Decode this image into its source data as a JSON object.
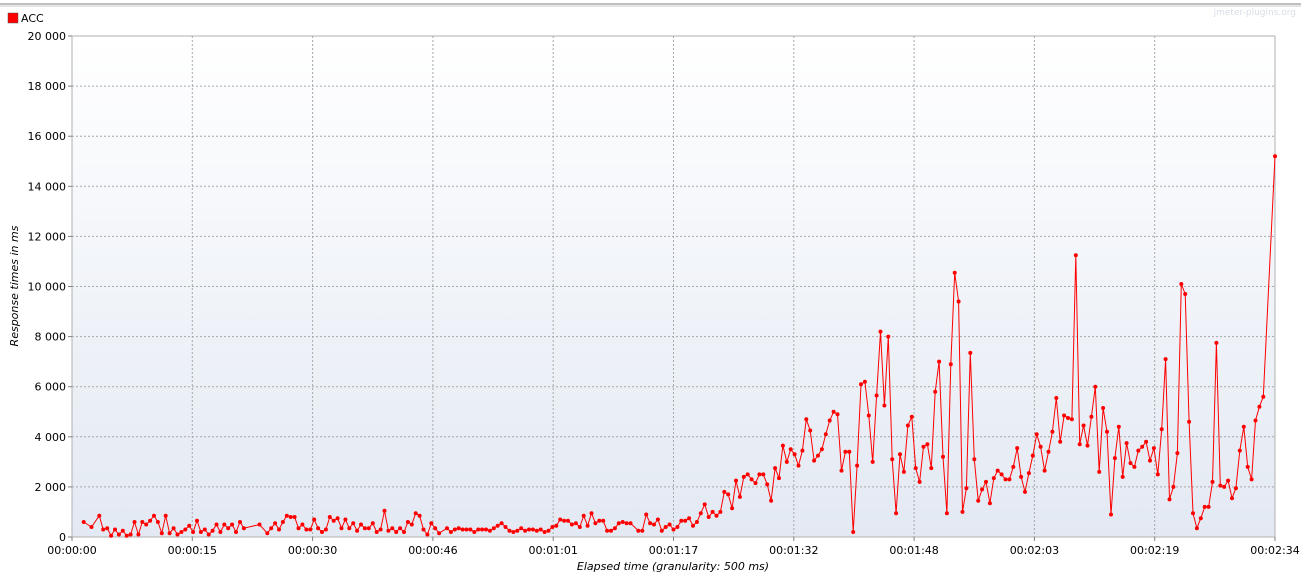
{
  "watermark": "jmeter-plugins.org",
  "legend": {
    "label": "ACC",
    "color": "#ff0000"
  },
  "chart_data": {
    "type": "line",
    "title": "",
    "xlabel": "Elapsed time (granularity: 500 ms)",
    "ylabel": "Response times in ms",
    "x_unit": "seconds",
    "xlim": [
      0,
      154
    ],
    "ylim": [
      0,
      20000
    ],
    "x_ticks": [
      "00:00:00",
      "00:00:15",
      "00:00:30",
      "00:00:46",
      "00:01:01",
      "00:01:17",
      "00:01:32",
      "00:01:48",
      "00:02:03",
      "00:02:19",
      "00:02:34"
    ],
    "y_ticks": [
      "0",
      "2 000",
      "4 000",
      "6 000",
      "8 000",
      "10 000",
      "12 000",
      "14 000",
      "16 000",
      "18 000",
      "20 000"
    ],
    "grid": true,
    "legend_position": "top-left",
    "series": [
      {
        "name": "ACC",
        "color": "#ff0000",
        "points": [
          [
            1.5,
            600
          ],
          [
            2.5,
            400
          ],
          [
            3.5,
            850
          ],
          [
            4.0,
            300
          ],
          [
            4.5,
            350
          ],
          [
            5.0,
            50
          ],
          [
            5.5,
            300
          ],
          [
            6.0,
            100
          ],
          [
            6.5,
            250
          ],
          [
            7.0,
            50
          ],
          [
            7.5,
            100
          ],
          [
            8.0,
            600
          ],
          [
            8.5,
            100
          ],
          [
            9.0,
            600
          ],
          [
            9.5,
            500
          ],
          [
            10.0,
            650
          ],
          [
            10.5,
            850
          ],
          [
            11.0,
            600
          ],
          [
            11.5,
            150
          ],
          [
            12.0,
            850
          ],
          [
            12.5,
            150
          ],
          [
            13.0,
            350
          ],
          [
            13.5,
            100
          ],
          [
            14.0,
            200
          ],
          [
            14.5,
            300
          ],
          [
            15.0,
            450
          ],
          [
            15.5,
            200
          ],
          [
            16.0,
            650
          ],
          [
            16.5,
            200
          ],
          [
            17.0,
            300
          ],
          [
            17.5,
            100
          ],
          [
            18.0,
            250
          ],
          [
            18.5,
            500
          ],
          [
            19.0,
            200
          ],
          [
            19.5,
            500
          ],
          [
            20.0,
            350
          ],
          [
            20.5,
            500
          ],
          [
            21.0,
            200
          ],
          [
            21.5,
            600
          ],
          [
            22.0,
            350
          ],
          [
            24.0,
            500
          ],
          [
            25.0,
            150
          ],
          [
            25.5,
            350
          ],
          [
            26.0,
            550
          ],
          [
            26.5,
            300
          ],
          [
            27.0,
            600
          ],
          [
            27.5,
            850
          ],
          [
            28.0,
            800
          ],
          [
            28.5,
            800
          ],
          [
            29.0,
            350
          ],
          [
            29.5,
            500
          ],
          [
            30.0,
            300
          ],
          [
            30.5,
            300
          ],
          [
            31.0,
            700
          ],
          [
            31.5,
            350
          ],
          [
            32.0,
            200
          ],
          [
            32.5,
            300
          ],
          [
            33.0,
            800
          ],
          [
            33.5,
            650
          ],
          [
            34.0,
            750
          ],
          [
            34.5,
            350
          ],
          [
            35.0,
            700
          ],
          [
            35.5,
            350
          ],
          [
            36.0,
            550
          ],
          [
            36.5,
            250
          ],
          [
            37.0,
            500
          ],
          [
            37.5,
            350
          ],
          [
            38.0,
            350
          ],
          [
            38.5,
            550
          ],
          [
            39.0,
            200
          ],
          [
            39.5,
            300
          ],
          [
            40.0,
            1050
          ],
          [
            40.5,
            250
          ],
          [
            41.0,
            350
          ],
          [
            41.5,
            200
          ],
          [
            42.0,
            350
          ],
          [
            42.5,
            200
          ],
          [
            43.0,
            600
          ],
          [
            43.5,
            500
          ],
          [
            44.0,
            950
          ],
          [
            44.5,
            850
          ],
          [
            45.0,
            300
          ],
          [
            45.5,
            100
          ],
          [
            46.0,
            550
          ],
          [
            46.5,
            350
          ],
          [
            47.0,
            150
          ],
          [
            48.0,
            350
          ],
          [
            48.5,
            200
          ],
          [
            49.0,
            300
          ],
          [
            49.5,
            350
          ],
          [
            50.0,
            300
          ],
          [
            50.5,
            300
          ],
          [
            51.0,
            300
          ],
          [
            51.5,
            200
          ],
          [
            52.0,
            300
          ],
          [
            52.5,
            300
          ],
          [
            53.0,
            300
          ],
          [
            53.5,
            250
          ],
          [
            54.0,
            350
          ],
          [
            54.5,
            450
          ],
          [
            55.0,
            550
          ],
          [
            55.5,
            400
          ],
          [
            56.0,
            250
          ],
          [
            56.5,
            200
          ],
          [
            57.0,
            250
          ],
          [
            57.5,
            350
          ],
          [
            58.0,
            250
          ],
          [
            58.5,
            300
          ],
          [
            59.0,
            300
          ],
          [
            59.5,
            250
          ],
          [
            60.0,
            300
          ],
          [
            60.5,
            200
          ],
          [
            61.0,
            250
          ],
          [
            61.5,
            400
          ],
          [
            62.0,
            450
          ],
          [
            62.5,
            700
          ],
          [
            63.0,
            650
          ],
          [
            63.5,
            650
          ],
          [
            64.0,
            500
          ],
          [
            64.5,
            550
          ],
          [
            65.0,
            400
          ],
          [
            65.5,
            850
          ],
          [
            66.0,
            450
          ],
          [
            66.5,
            950
          ],
          [
            67.0,
            550
          ],
          [
            67.5,
            650
          ],
          [
            68.0,
            650
          ],
          [
            68.5,
            250
          ],
          [
            69.0,
            250
          ],
          [
            69.5,
            350
          ],
          [
            70.0,
            550
          ],
          [
            70.5,
            600
          ],
          [
            71.0,
            550
          ],
          [
            71.5,
            550
          ],
          [
            72.5,
            250
          ],
          [
            73.0,
            250
          ],
          [
            73.5,
            900
          ],
          [
            74.0,
            550
          ],
          [
            74.5,
            500
          ],
          [
            75.0,
            700
          ],
          [
            75.5,
            250
          ],
          [
            76.0,
            400
          ],
          [
            76.5,
            500
          ],
          [
            77.0,
            300
          ],
          [
            77.5,
            400
          ],
          [
            78.0,
            650
          ],
          [
            78.5,
            650
          ],
          [
            79.0,
            750
          ],
          [
            79.5,
            450
          ],
          [
            80.0,
            600
          ],
          [
            80.5,
            950
          ],
          [
            81.0,
            1300
          ],
          [
            81.5,
            800
          ],
          [
            82.0,
            1000
          ],
          [
            82.5,
            850
          ],
          [
            83.0,
            1000
          ],
          [
            83.5,
            1800
          ],
          [
            84.0,
            1700
          ],
          [
            84.5,
            1150
          ],
          [
            85.0,
            2250
          ],
          [
            85.5,
            1600
          ],
          [
            86.0,
            2400
          ],
          [
            86.5,
            2500
          ],
          [
            87.0,
            2300
          ],
          [
            87.5,
            2150
          ],
          [
            88.0,
            2500
          ],
          [
            88.5,
            2500
          ],
          [
            89.0,
            2100
          ],
          [
            89.5,
            1450
          ],
          [
            90.0,
            2750
          ],
          [
            90.5,
            2350
          ],
          [
            91.0,
            3650
          ],
          [
            91.5,
            3000
          ],
          [
            92.0,
            3500
          ],
          [
            92.5,
            3300
          ],
          [
            93.0,
            2850
          ],
          [
            93.5,
            3450
          ],
          [
            94.0,
            4700
          ],
          [
            94.5,
            4250
          ],
          [
            95.0,
            3050
          ],
          [
            95.5,
            3250
          ],
          [
            96.0,
            3500
          ],
          [
            96.5,
            4100
          ],
          [
            97.0,
            4650
          ],
          [
            97.5,
            5000
          ],
          [
            98.0,
            4900
          ],
          [
            98.5,
            2650
          ],
          [
            99.0,
            3400
          ],
          [
            99.5,
            3400
          ],
          [
            100.0,
            200
          ],
          [
            100.5,
            2850
          ],
          [
            101.0,
            6100
          ],
          [
            101.5,
            6200
          ],
          [
            102.0,
            4850
          ],
          [
            102.5,
            3000
          ],
          [
            103.0,
            5650
          ],
          [
            103.5,
            8200
          ],
          [
            104.0,
            5250
          ],
          [
            104.5,
            8000
          ],
          [
            105.0,
            3100
          ],
          [
            105.5,
            950
          ],
          [
            106.0,
            3300
          ],
          [
            106.5,
            2600
          ],
          [
            107.0,
            4450
          ],
          [
            107.5,
            4800
          ],
          [
            108.0,
            2750
          ],
          [
            108.5,
            2200
          ],
          [
            109.0,
            3600
          ],
          [
            109.5,
            3700
          ],
          [
            110.0,
            2750
          ],
          [
            110.5,
            5800
          ],
          [
            111.0,
            7000
          ],
          [
            111.5,
            3200
          ],
          [
            112.0,
            950
          ],
          [
            112.5,
            6900
          ],
          [
            113.0,
            10550
          ],
          [
            113.5,
            9400
          ],
          [
            114.0,
            1000
          ],
          [
            114.5,
            1950
          ],
          [
            115.0,
            7350
          ],
          [
            115.5,
            3100
          ],
          [
            116.0,
            1450
          ],
          [
            116.5,
            1900
          ],
          [
            117.0,
            2200
          ],
          [
            117.5,
            1350
          ],
          [
            118.0,
            2350
          ],
          [
            118.5,
            2650
          ],
          [
            119.0,
            2500
          ],
          [
            119.5,
            2300
          ],
          [
            120.0,
            2300
          ],
          [
            120.5,
            2800
          ],
          [
            121.0,
            3550
          ],
          [
            121.5,
            2400
          ],
          [
            122.0,
            1800
          ],
          [
            122.5,
            2550
          ],
          [
            123.0,
            3250
          ],
          [
            123.5,
            4100
          ],
          [
            124.0,
            3600
          ],
          [
            124.5,
            2650
          ],
          [
            125.0,
            3400
          ],
          [
            125.5,
            4200
          ],
          [
            126.0,
            5550
          ],
          [
            126.5,
            3800
          ],
          [
            127.0,
            4850
          ],
          [
            127.5,
            4750
          ],
          [
            128.0,
            4700
          ],
          [
            128.5,
            11250
          ],
          [
            129.0,
            3700
          ],
          [
            129.5,
            4450
          ],
          [
            130.0,
            3650
          ],
          [
            130.5,
            4800
          ],
          [
            131.0,
            6000
          ],
          [
            131.5,
            2600
          ],
          [
            132.0,
            5150
          ],
          [
            132.5,
            4200
          ],
          [
            133.0,
            900
          ],
          [
            133.5,
            3150
          ],
          [
            134.0,
            4400
          ],
          [
            134.5,
            2400
          ],
          [
            135.0,
            3750
          ],
          [
            135.5,
            2950
          ],
          [
            136.0,
            2800
          ],
          [
            136.5,
            3450
          ],
          [
            137.0,
            3600
          ],
          [
            137.5,
            3800
          ],
          [
            138.0,
            3050
          ],
          [
            138.5,
            3550
          ],
          [
            139.0,
            2500
          ],
          [
            139.5,
            4300
          ],
          [
            140.0,
            7100
          ],
          [
            140.5,
            1500
          ],
          [
            141.0,
            2000
          ],
          [
            141.5,
            3350
          ],
          [
            142.0,
            10100
          ],
          [
            142.5,
            9700
          ],
          [
            143.0,
            4600
          ],
          [
            143.5,
            950
          ],
          [
            144.0,
            350
          ],
          [
            144.5,
            750
          ],
          [
            145.0,
            1200
          ],
          [
            145.5,
            1200
          ],
          [
            146.0,
            2200
          ],
          [
            146.5,
            7750
          ],
          [
            147.0,
            2050
          ],
          [
            147.5,
            2000
          ],
          [
            148.0,
            2250
          ],
          [
            148.5,
            1550
          ],
          [
            149.0,
            1950
          ],
          [
            149.5,
            3450
          ],
          [
            150.0,
            4400
          ],
          [
            150.5,
            2800
          ],
          [
            151.0,
            2300
          ],
          [
            151.5,
            4650
          ],
          [
            152.0,
            5200
          ],
          [
            152.5,
            5600
          ],
          [
            154.0,
            15200
          ]
        ]
      }
    ]
  }
}
